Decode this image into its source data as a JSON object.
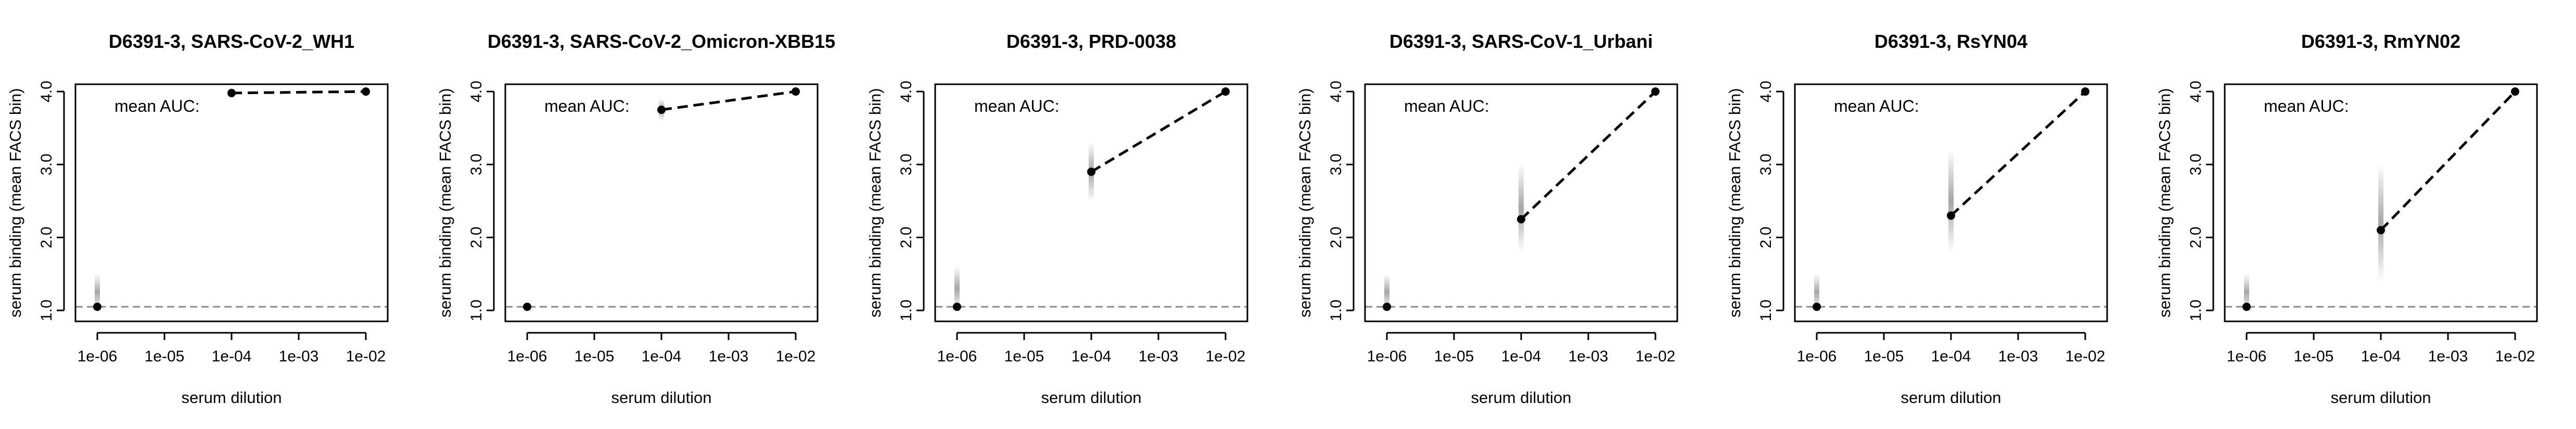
{
  "chart_data": [
    {
      "type": "line",
      "title": "D6391-3, SARS-CoV-2_WH1",
      "xlabel": "serum dilution",
      "ylabel": "serum binding (mean FACS bin)",
      "annotation": "mean AUC:",
      "x_scale": "log",
      "x_ticks": [
        "1e-06",
        "1e-05",
        "1e-04",
        "1e-03",
        "1e-02"
      ],
      "y_ticks": [
        "1.0",
        "2.0",
        "3.0",
        "4.0"
      ],
      "ylim": [
        0.85,
        4.1
      ],
      "baseline_y": 1.05,
      "points": [
        {
          "x": "1e-06",
          "y": 1.05
        },
        {
          "x": "1e-04",
          "y": 3.98
        },
        {
          "x": "1e-02",
          "y": 4.0
        }
      ],
      "spread": [
        {
          "x": "1e-06",
          "low": 1.0,
          "high": 1.5
        },
        {
          "x": "1e-04",
          "low": 3.9,
          "high": 4.05
        }
      ]
    },
    {
      "type": "line",
      "title": "D6391-3, SARS-CoV-2_Omicron-XBB15",
      "xlabel": "serum dilution",
      "ylabel": "serum binding (mean FACS bin)",
      "annotation": "mean AUC:",
      "x_scale": "log",
      "x_ticks": [
        "1e-06",
        "1e-05",
        "1e-04",
        "1e-03",
        "1e-02"
      ],
      "y_ticks": [
        "1.0",
        "2.0",
        "3.0",
        "4.0"
      ],
      "ylim": [
        0.85,
        4.1
      ],
      "baseline_y": 1.05,
      "points": [
        {
          "x": "1e-06",
          "y": 1.05
        },
        {
          "x": "1e-04",
          "y": 3.75
        },
        {
          "x": "1e-02",
          "y": 4.0
        }
      ],
      "spread": [
        {
          "x": "1e-04",
          "low": 3.6,
          "high": 3.9
        }
      ]
    },
    {
      "type": "line",
      "title": "D6391-3, PRD-0038",
      "xlabel": "serum dilution",
      "ylabel": "serum binding (mean FACS bin)",
      "annotation": "mean AUC:",
      "x_scale": "log",
      "x_ticks": [
        "1e-06",
        "1e-05",
        "1e-04",
        "1e-03",
        "1e-02"
      ],
      "y_ticks": [
        "1.0",
        "2.0",
        "3.0",
        "4.0"
      ],
      "ylim": [
        0.85,
        4.1
      ],
      "baseline_y": 1.05,
      "points": [
        {
          "x": "1e-06",
          "y": 1.05
        },
        {
          "x": "1e-04",
          "y": 2.9
        },
        {
          "x": "1e-02",
          "y": 4.0
        }
      ],
      "spread": [
        {
          "x": "1e-06",
          "low": 1.0,
          "high": 1.6
        },
        {
          "x": "1e-04",
          "low": 2.5,
          "high": 3.3
        }
      ]
    },
    {
      "type": "line",
      "title": "D6391-3, SARS-CoV-1_Urbani",
      "xlabel": "serum dilution",
      "ylabel": "serum binding (mean FACS bin)",
      "annotation": "mean AUC:",
      "x_scale": "log",
      "x_ticks": [
        "1e-06",
        "1e-05",
        "1e-04",
        "1e-03",
        "1e-02"
      ],
      "y_ticks": [
        "1.0",
        "2.0",
        "3.0",
        "4.0"
      ],
      "ylim": [
        0.85,
        4.1
      ],
      "baseline_y": 1.05,
      "points": [
        {
          "x": "1e-06",
          "y": 1.05
        },
        {
          "x": "1e-04",
          "y": 2.25
        },
        {
          "x": "1e-02",
          "y": 4.0
        }
      ],
      "spread": [
        {
          "x": "1e-06",
          "low": 1.0,
          "high": 1.5
        },
        {
          "x": "1e-04",
          "low": 1.8,
          "high": 3.0
        }
      ]
    },
    {
      "type": "line",
      "title": "D6391-3, RsYN04",
      "xlabel": "serum dilution",
      "ylabel": "serum binding (mean FACS bin)",
      "annotation": "mean AUC:",
      "x_scale": "log",
      "x_ticks": [
        "1e-06",
        "1e-05",
        "1e-04",
        "1e-03",
        "1e-02"
      ],
      "y_ticks": [
        "1.0",
        "2.0",
        "3.0",
        "4.0"
      ],
      "ylim": [
        0.85,
        4.1
      ],
      "baseline_y": 1.05,
      "points": [
        {
          "x": "1e-06",
          "y": 1.05
        },
        {
          "x": "1e-04",
          "y": 2.3
        },
        {
          "x": "1e-02",
          "y": 4.0
        }
      ],
      "spread": [
        {
          "x": "1e-06",
          "low": 1.0,
          "high": 1.5
        },
        {
          "x": "1e-04",
          "low": 1.8,
          "high": 3.2
        }
      ]
    },
    {
      "type": "line",
      "title": "D6391-3, RmYN02",
      "xlabel": "serum dilution",
      "ylabel": "serum binding (mean FACS bin)",
      "annotation": "mean AUC:",
      "x_scale": "log",
      "x_ticks": [
        "1e-06",
        "1e-05",
        "1e-04",
        "1e-03",
        "1e-02"
      ],
      "y_ticks": [
        "1.0",
        "2.0",
        "3.0",
        "4.0"
      ],
      "ylim": [
        0.85,
        4.1
      ],
      "baseline_y": 1.05,
      "points": [
        {
          "x": "1e-06",
          "y": 1.05
        },
        {
          "x": "1e-04",
          "y": 2.1
        },
        {
          "x": "1e-02",
          "y": 4.0
        }
      ],
      "spread": [
        {
          "x": "1e-06",
          "low": 1.0,
          "high": 1.5
        },
        {
          "x": "1e-04",
          "low": 1.4,
          "high": 3.0
        }
      ]
    }
  ]
}
